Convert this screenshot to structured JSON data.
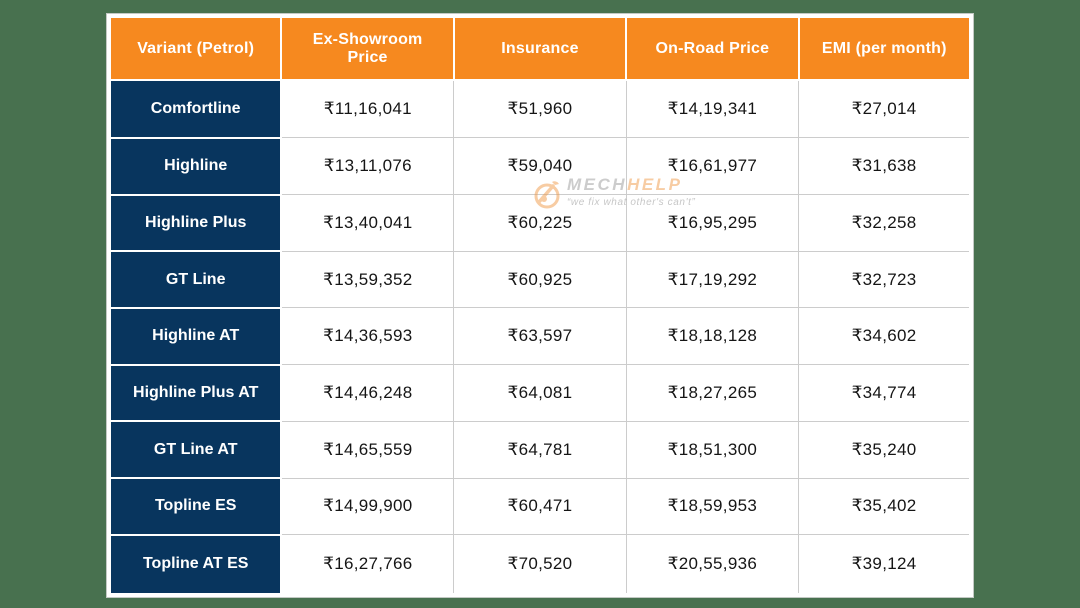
{
  "colors": {
    "page_background": "#48714F",
    "header_background": "#F6891F",
    "variant_column_background": "#08355E",
    "cell_border": "#CCCCCC",
    "table_border": "#FFFFFF",
    "header_text": "#FFFFFF",
    "value_text": "#151515",
    "watermark_orange": "#F09A4A",
    "watermark_gray": "#9A9A9A"
  },
  "chart_data": {
    "type": "table",
    "title": "",
    "columns": [
      "Variant (Petrol)",
      "Ex-Showroom Price",
      "Insurance",
      "On-Road Price",
      "EMI (per month)"
    ],
    "rows": [
      [
        "Comfortline",
        "₹11,16,041",
        "₹51,960",
        "₹14,19,341",
        "₹27,014"
      ],
      [
        "Highline",
        "₹13,11,076",
        "₹59,040",
        "₹16,61,977",
        "₹31,638"
      ],
      [
        "Highline Plus",
        "₹13,40,041",
        "₹60,225",
        "₹16,95,295",
        "₹32,258"
      ],
      [
        "GT Line",
        "₹13,59,352",
        "₹60,925",
        "₹17,19,292",
        "₹32,723"
      ],
      [
        "Highline AT",
        "₹14,36,593",
        "₹63,597",
        "₹18,18,128",
        "₹34,602"
      ],
      [
        "Highline Plus AT",
        "₹14,46,248",
        "₹64,081",
        "₹18,27,265",
        "₹34,774"
      ],
      [
        "GT Line AT",
        "₹14,65,559",
        "₹64,781",
        "₹18,51,300",
        "₹35,240"
      ],
      [
        "Topline ES",
        "₹14,99,900",
        "₹60,471",
        "₹18,59,953",
        "₹35,402"
      ],
      [
        "Topline AT ES",
        "₹16,27,766",
        "₹70,520",
        "₹20,55,936",
        "₹39,124"
      ]
    ]
  },
  "watermark": {
    "brand_left": "MECH",
    "brand_right": "HELP",
    "tagline": "“we fix what other's can't”",
    "icon": "wrench-gear-icon"
  }
}
